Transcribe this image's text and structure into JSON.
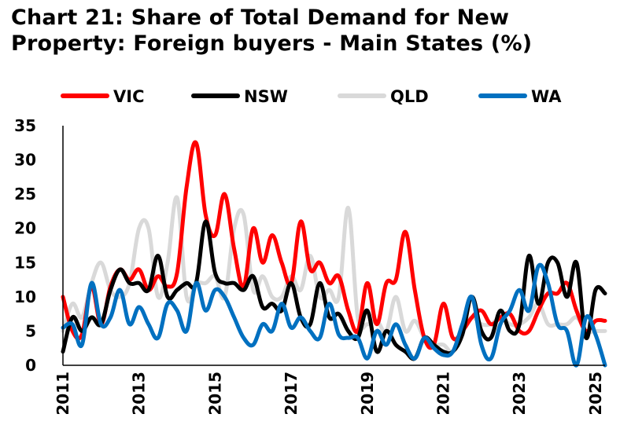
{
  "chart_data": {
    "type": "line",
    "title": "Chart 21: Share of Total Demand for New Property: Foreign buyers - Main States (%)",
    "xlabel": "",
    "ylabel": "",
    "ylim": [
      0,
      35
    ],
    "xlim": [
      2011,
      2025.25
    ],
    "yticks": [
      "0",
      "5",
      "10",
      "15",
      "20",
      "25",
      "30",
      "35"
    ],
    "xticks": [
      "2011",
      "2013",
      "2015",
      "2017",
      "2019",
      "2021",
      "2023",
      "2025"
    ],
    "legend_position": "top",
    "series": [
      {
        "name": "VIC",
        "color": "#ff0000",
        "x": [
          2011.0,
          2011.25,
          2011.5,
          2011.75,
          2012.0,
          2012.25,
          2012.5,
          2012.75,
          2013.0,
          2013.25,
          2013.5,
          2013.75,
          2014.0,
          2014.25,
          2014.5,
          2014.75,
          2015.0,
          2015.25,
          2015.5,
          2015.75,
          2016.0,
          2016.25,
          2016.5,
          2016.75,
          2017.0,
          2017.25,
          2017.5,
          2017.75,
          2018.0,
          2018.25,
          2018.5,
          2018.75,
          2019.0,
          2019.25,
          2019.5,
          2019.75,
          2020.0,
          2020.25,
          2020.5,
          2020.75,
          2021.0,
          2021.25,
          2021.5,
          2021.75,
          2022.0,
          2022.25,
          2022.5,
          2022.75,
          2023.0,
          2023.25,
          2023.5,
          2023.75,
          2024.0,
          2024.25,
          2024.5,
          2024.75,
          2025.0,
          2025.25
        ],
        "y": [
          10,
          5,
          4.5,
          11.5,
          6,
          11.5,
          14,
          12.5,
          14,
          11,
          13,
          11.5,
          13.5,
          26,
          32.5,
          22,
          19,
          25,
          17,
          11.5,
          20,
          15,
          19,
          15,
          12,
          21,
          14,
          15,
          12,
          13,
          8,
          5,
          12,
          6,
          12,
          12.5,
          19.5,
          11,
          4,
          3,
          9,
          4,
          5,
          7,
          8,
          6,
          7,
          7.5,
          5,
          5,
          8,
          10.5,
          10.5,
          12,
          8,
          5,
          6.5,
          6.5
        ]
      },
      {
        "name": "NSW",
        "color": "#000000",
        "x": [
          2011.0,
          2011.25,
          2011.5,
          2011.75,
          2012.0,
          2012.25,
          2012.5,
          2012.75,
          2013.0,
          2013.25,
          2013.5,
          2013.75,
          2014.0,
          2014.25,
          2014.5,
          2014.75,
          2015.0,
          2015.25,
          2015.5,
          2015.75,
          2016.0,
          2016.25,
          2016.5,
          2016.75,
          2017.0,
          2017.25,
          2017.5,
          2017.75,
          2018.0,
          2018.25,
          2018.5,
          2018.75,
          2019.0,
          2019.25,
          2019.5,
          2019.75,
          2020.0,
          2020.25,
          2020.5,
          2020.75,
          2021.0,
          2021.25,
          2021.5,
          2021.75,
          2022.0,
          2022.25,
          2022.5,
          2022.75,
          2023.0,
          2023.25,
          2023.5,
          2023.75,
          2024.0,
          2024.25,
          2024.5,
          2024.75,
          2025.0,
          2025.25
        ],
        "y": [
          2,
          7,
          5,
          7,
          6,
          11,
          14,
          12,
          12,
          11,
          16,
          10,
          11,
          12,
          12,
          21,
          13.5,
          12,
          12,
          11,
          13,
          8.5,
          9,
          8,
          12,
          7,
          6,
          12,
          7,
          7.5,
          5,
          4,
          8,
          2,
          5,
          3,
          2,
          1,
          4,
          3,
          2,
          2,
          4.5,
          10,
          5,
          4,
          8,
          5,
          6,
          16,
          9,
          15,
          15,
          10,
          15,
          4,
          11,
          10.5
        ]
      },
      {
        "name": "QLD",
        "color": "#d9d9d9",
        "x": [
          2011.0,
          2011.25,
          2011.5,
          2011.75,
          2012.0,
          2012.25,
          2012.5,
          2012.75,
          2013.0,
          2013.25,
          2013.5,
          2013.75,
          2014.0,
          2014.25,
          2014.5,
          2014.75,
          2015.0,
          2015.25,
          2015.5,
          2015.75,
          2016.0,
          2016.25,
          2016.5,
          2016.75,
          2017.0,
          2017.25,
          2017.5,
          2017.75,
          2018.0,
          2018.25,
          2018.5,
          2018.75,
          2019.0,
          2019.25,
          2019.5,
          2019.75,
          2020.0,
          2020.25,
          2020.5,
          2020.75,
          2021.0,
          2021.25,
          2021.5,
          2021.75,
          2022.0,
          2022.25,
          2022.5,
          2022.75,
          2023.0,
          2023.25,
          2023.5,
          2023.75,
          2024.0,
          2024.25,
          2024.5,
          2024.75,
          2025.0,
          2025.25
        ],
        "y": [
          5,
          9,
          7,
          12,
          15,
          11,
          10,
          12,
          20,
          20,
          10,
          15,
          24.5,
          10,
          12,
          12,
          13,
          10,
          20,
          22,
          11,
          13,
          10,
          10,
          13,
          11,
          16,
          10,
          11,
          10,
          23,
          7,
          6,
          6.5,
          5,
          10,
          5,
          6.5,
          4,
          3,
          3,
          2,
          5,
          7,
          6,
          6,
          7,
          6,
          6,
          7,
          9,
          6,
          6,
          6,
          7,
          5,
          5,
          5
        ]
      },
      {
        "name": "WA",
        "color": "#0070c0",
        "x": [
          2011.0,
          2011.25,
          2011.5,
          2011.75,
          2012.0,
          2012.25,
          2012.5,
          2012.75,
          2013.0,
          2013.25,
          2013.5,
          2013.75,
          2014.0,
          2014.25,
          2014.5,
          2014.75,
          2015.0,
          2015.25,
          2015.5,
          2015.75,
          2016.0,
          2016.25,
          2016.5,
          2016.75,
          2017.0,
          2017.25,
          2017.5,
          2017.75,
          2018.0,
          2018.25,
          2018.5,
          2018.75,
          2019.0,
          2019.25,
          2019.5,
          2019.75,
          2020.0,
          2020.25,
          2020.5,
          2020.75,
          2021.0,
          2021.25,
          2021.5,
          2021.75,
          2022.0,
          2022.25,
          2022.5,
          2022.75,
          2023.0,
          2023.25,
          2023.5,
          2023.75,
          2024.0,
          2024.25,
          2024.5,
          2024.75,
          2025.0,
          2025.25
        ],
        "y": [
          5.5,
          6,
          3,
          12,
          6,
          7,
          11,
          6,
          8.5,
          6,
          4,
          9,
          8,
          5,
          12,
          8,
          11,
          10,
          7,
          4,
          3,
          6,
          5,
          9,
          5.5,
          7,
          5,
          4,
          9,
          4.5,
          4,
          4,
          1,
          5,
          3,
          6,
          3,
          1,
          4,
          2.5,
          1.5,
          2,
          6,
          10,
          3,
          1,
          6,
          8,
          11,
          8,
          14.5,
          12,
          6,
          5,
          0,
          7,
          4.5,
          0
        ]
      }
    ]
  }
}
